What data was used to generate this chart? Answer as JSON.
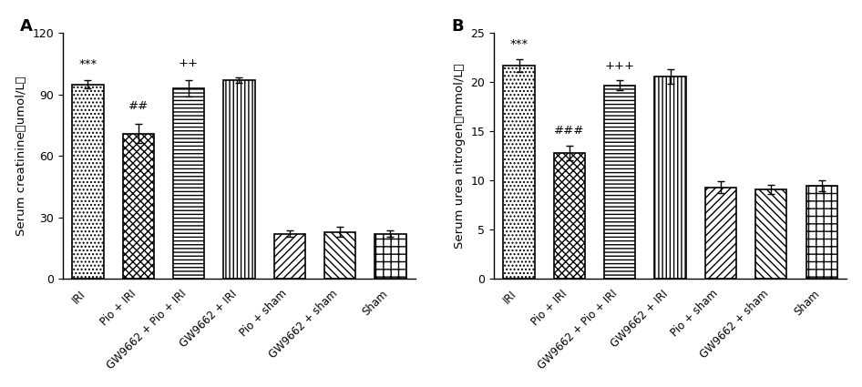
{
  "panel_A": {
    "label": "A",
    "categories": [
      "IRI",
      "Pio + IRI",
      "GW9662 + Pio + IRI",
      "GW9662 + IRI",
      "Pio + sham",
      "GW9662 + sham",
      "Sham"
    ],
    "values": [
      95.0,
      71.0,
      93.0,
      97.0,
      22.0,
      23.0,
      22.0
    ],
    "errors": [
      1.8,
      4.5,
      3.8,
      1.5,
      1.5,
      2.5,
      1.5
    ],
    "ylabel": "Serum creatinine（umol/L）",
    "ylim": [
      0,
      120
    ],
    "yticks": [
      0,
      30,
      60,
      90,
      120
    ],
    "annotations": [
      "***",
      "##",
      "++",
      null,
      null,
      null,
      null
    ],
    "ann_offset": [
      5.0,
      6.0,
      5.5,
      0,
      0,
      0,
      0
    ]
  },
  "panel_B": {
    "label": "B",
    "categories": [
      "IRI",
      "Pio + IRI",
      "GW9662 + Pio + IRI",
      "GW9662 + IRI",
      "Pio + sham",
      "GW9662 + sham",
      "Sham"
    ],
    "values": [
      21.7,
      12.8,
      19.7,
      20.6,
      9.3,
      9.1,
      9.5
    ],
    "errors": [
      0.65,
      0.75,
      0.55,
      0.75,
      0.6,
      0.45,
      0.55
    ],
    "ylabel": "Serum urea nitrogen（mmol/L）",
    "ylim": [
      0,
      25
    ],
    "yticks": [
      0,
      5,
      10,
      15,
      20,
      25
    ],
    "annotations": [
      "***",
      "###",
      "+++",
      null,
      null,
      null,
      null
    ],
    "ann_offset": [
      0.9,
      0.9,
      0.75,
      0,
      0,
      0,
      0
    ]
  },
  "hatch_patterns": [
    "....",
    "xxxx",
    "----",
    "||||",
    "////",
    "\\\\\\\\",
    "xxxx+"
  ],
  "bar_edgecolor": "black",
  "bar_width": 0.62,
  "figure_bg": "white",
  "font_size": 8.5,
  "label_fontsize": 9.5,
  "ann_fontsize": 9.5,
  "tick_fontsize": 9,
  "panel_label_fontsize": 13
}
